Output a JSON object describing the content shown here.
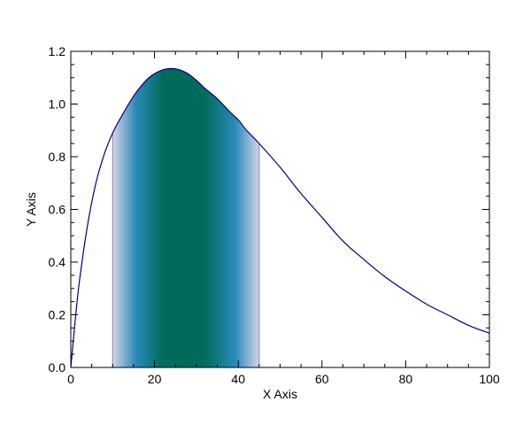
{
  "chart_data": {
    "type": "line",
    "title": "",
    "xlabel": "X Axis",
    "ylabel": "Y Axis",
    "xlim": [
      0,
      100
    ],
    "ylim": [
      0,
      1.2
    ],
    "x_ticks": [
      "0",
      "20",
      "40",
      "60",
      "80",
      "100"
    ],
    "y_ticks": [
      "0.0",
      "0.2",
      "0.4",
      "0.6",
      "0.8",
      "1.0",
      "1.2"
    ],
    "grid": false,
    "series": [
      {
        "color": "#000080",
        "x": [
          0,
          1,
          2,
          4,
          6,
          8,
          10,
          12,
          15,
          18,
          20,
          22,
          24,
          26,
          28,
          30,
          32,
          35,
          38,
          40,
          42,
          45,
          50,
          55,
          60,
          65,
          70,
          75,
          80,
          85,
          90,
          95,
          100
        ],
        "y": [
          0.0,
          0.17,
          0.32,
          0.54,
          0.7,
          0.81,
          0.89,
          0.95,
          1.03,
          1.09,
          1.115,
          1.13,
          1.135,
          1.13,
          1.115,
          1.09,
          1.06,
          1.02,
          0.97,
          0.94,
          0.9,
          0.85,
          0.76,
          0.66,
          0.57,
          0.48,
          0.41,
          0.345,
          0.29,
          0.24,
          0.2,
          0.16,
          0.13
        ]
      }
    ],
    "shaded_region": {
      "x_start": 10,
      "x_end": 45,
      "center": 26,
      "color_center": "#006b5a",
      "color_mid": "#2a8ab8",
      "color_edge": "#d4d4e6"
    }
  }
}
